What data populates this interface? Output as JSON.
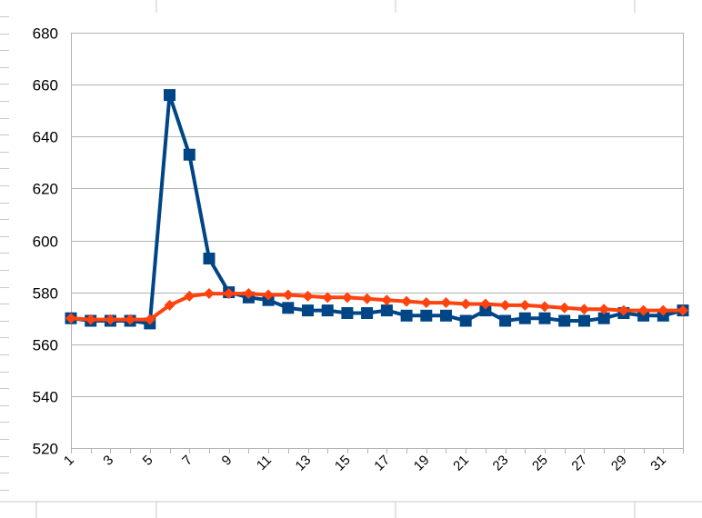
{
  "chart_data": {
    "type": "line",
    "title": "",
    "xlabel": "",
    "ylabel": "",
    "ylim": [
      520,
      680
    ],
    "y_ticks": [
      520,
      540,
      560,
      580,
      600,
      620,
      640,
      660,
      680
    ],
    "x": [
      1,
      2,
      3,
      4,
      5,
      6,
      7,
      8,
      9,
      10,
      11,
      12,
      13,
      14,
      15,
      16,
      17,
      18,
      19,
      20,
      21,
      22,
      23,
      24,
      25,
      26,
      27,
      28,
      29,
      30,
      31,
      32
    ],
    "x_tick_labels": [
      "1",
      "3",
      "5",
      "7",
      "9",
      "11",
      "13",
      "15",
      "17",
      "19",
      "21",
      "23",
      "25",
      "27",
      "29",
      "31"
    ],
    "grid": true,
    "series": [
      {
        "color": "#004586",
        "marker": "square",
        "values": [
          570,
          569,
          569,
          569,
          568,
          656,
          633,
          593,
          580,
          578,
          577,
          574,
          573,
          573,
          572,
          572,
          573,
          571,
          571,
          571,
          569,
          573,
          569,
          570,
          570,
          569,
          569,
          570,
          572,
          571,
          571,
          573
        ]
      },
      {
        "color": "#ff420e",
        "marker": "diamond",
        "values": [
          570,
          569.5,
          569.5,
          569.5,
          569.5,
          575,
          578.5,
          579.5,
          579.5,
          579.5,
          579,
          579,
          578.5,
          578,
          578,
          577.5,
          577,
          576.5,
          576,
          576,
          575.5,
          575.5,
          575,
          575,
          574.5,
          574,
          573.5,
          573.5,
          573,
          573,
          573,
          573
        ]
      }
    ]
  }
}
